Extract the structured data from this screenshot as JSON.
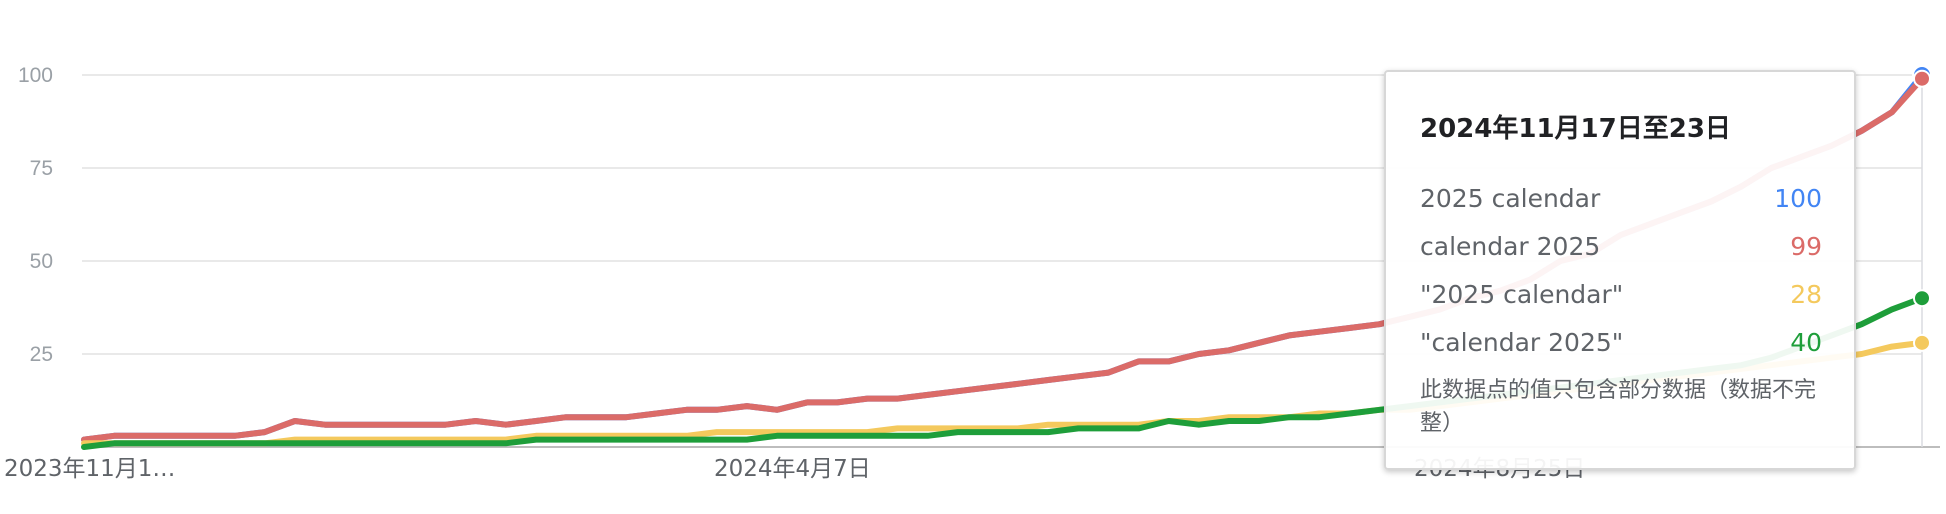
{
  "chart_data": {
    "type": "line",
    "y_ticks": [
      "100",
      "75",
      "50",
      "25"
    ],
    "ylim": [
      0,
      100
    ],
    "x_tick_labels": [
      "2023年11月1…",
      "2024年4月7日",
      "2024年8月25日"
    ],
    "grid": true,
    "series": [
      {
        "name": "2025 calendar",
        "color": "#4285f4",
        "values": [
          2,
          3,
          3,
          3,
          3,
          3,
          4,
          7,
          6,
          6,
          6,
          6,
          6,
          7,
          6,
          7,
          8,
          8,
          8,
          9,
          10,
          10,
          11,
          10,
          12,
          12,
          13,
          13,
          14,
          15,
          16,
          17,
          18,
          19,
          20,
          23,
          23,
          25,
          26,
          28,
          30,
          31,
          32,
          33,
          35,
          37,
          40,
          42,
          45,
          50,
          52,
          57,
          60,
          63,
          66,
          70,
          75,
          78,
          81,
          85,
          90,
          100
        ]
      },
      {
        "name": "calendar 2025",
        "color": "#db6b68",
        "values": [
          2,
          3,
          3,
          3,
          3,
          3,
          4,
          7,
          6,
          6,
          6,
          6,
          6,
          7,
          6,
          7,
          8,
          8,
          8,
          9,
          10,
          10,
          11,
          10,
          12,
          12,
          13,
          13,
          14,
          15,
          16,
          17,
          18,
          19,
          20,
          23,
          23,
          25,
          26,
          28,
          30,
          31,
          32,
          33,
          35,
          37,
          40,
          42,
          45,
          50,
          52,
          57,
          60,
          63,
          66,
          70,
          75,
          78,
          81,
          85,
          90,
          99
        ]
      },
      {
        "name": "\"2025 calendar\"",
        "color": "#f4c95d",
        "values": [
          1,
          1,
          1,
          1,
          1,
          1,
          1,
          2,
          2,
          2,
          2,
          2,
          2,
          2,
          2,
          3,
          3,
          3,
          3,
          3,
          3,
          4,
          4,
          4,
          4,
          4,
          4,
          5,
          5,
          5,
          5,
          5,
          6,
          6,
          6,
          6,
          7,
          7,
          8,
          8,
          8,
          9,
          9,
          10,
          10,
          11,
          12,
          13,
          14,
          15,
          16,
          17,
          18,
          19,
          20,
          21,
          22,
          23,
          24,
          25,
          27,
          28
        ]
      },
      {
        "name": "\"calendar 2025\"",
        "color": "#1e9e3a",
        "values": [
          0,
          1,
          1,
          1,
          1,
          1,
          1,
          1,
          1,
          1,
          1,
          1,
          1,
          1,
          1,
          2,
          2,
          2,
          2,
          2,
          2,
          2,
          2,
          3,
          3,
          3,
          3,
          3,
          3,
          4,
          4,
          4,
          4,
          5,
          5,
          5,
          7,
          6,
          7,
          7,
          8,
          8,
          9,
          10,
          11,
          12,
          13,
          14,
          15,
          16,
          17,
          18,
          19,
          20,
          21,
          22,
          24,
          27,
          30,
          33,
          37,
          40
        ]
      }
    ]
  },
  "tooltip": {
    "title": "2024年11月17日至23日",
    "rows": [
      {
        "name": "2025 calendar",
        "value": "100",
        "color": "#4285f4"
      },
      {
        "name": "calendar 2025",
        "value": "99",
        "color": "#db6b68"
      },
      {
        "name": "\"2025 calendar\"",
        "value": "28",
        "color": "#f4c95d"
      },
      {
        "name": "\"calendar 2025\"",
        "value": "40",
        "color": "#1e9e3a"
      }
    ],
    "note": "此数据点的值只包含部分数据（数据不完整）"
  }
}
